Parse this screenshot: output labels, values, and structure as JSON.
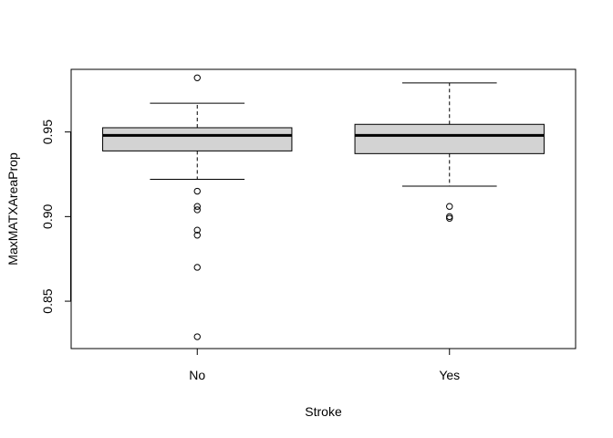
{
  "chart_data": {
    "type": "boxplot",
    "title": "",
    "xlabel": "Stroke",
    "ylabel": "MaxMATXAreaProp",
    "ylim": [
      0.822,
      0.987
    ],
    "yticks": [
      0.85,
      0.9,
      0.95
    ],
    "ytick_labels": [
      "0.85",
      "0.90",
      "0.95"
    ],
    "categories": [
      "No",
      "Yes"
    ],
    "box_fill": "#d3d3d3",
    "line_color": "#000000",
    "boxes": [
      {
        "name": "No",
        "whisker_low": 0.922,
        "q1": 0.9388,
        "median": 0.948,
        "q3": 0.9525,
        "whisker_high": 0.967,
        "outliers": [
          0.982,
          0.915,
          0.906,
          0.904,
          0.892,
          0.889,
          0.87,
          0.829
        ]
      },
      {
        "name": "Yes",
        "whisker_low": 0.918,
        "q1": 0.9372,
        "median": 0.948,
        "q3": 0.9545,
        "whisker_high": 0.979,
        "outliers": [
          0.906,
          0.9,
          0.899
        ]
      }
    ]
  }
}
